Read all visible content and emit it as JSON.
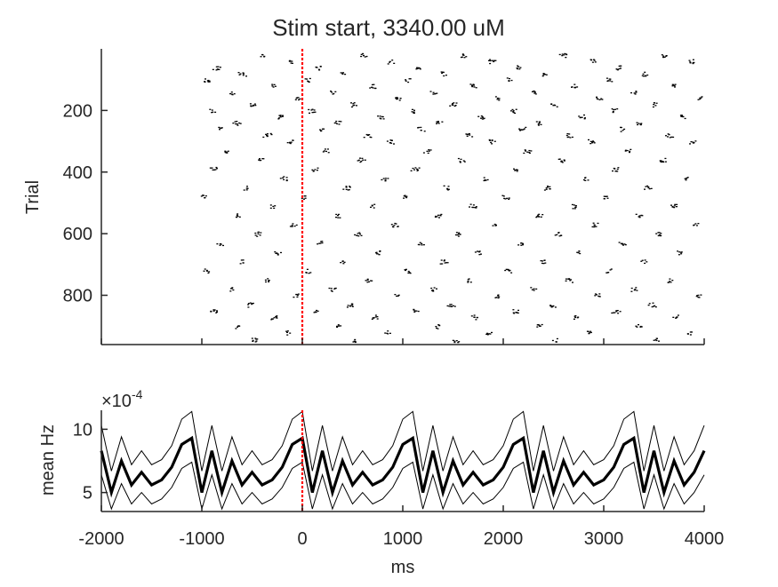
{
  "chart_data": [
    {
      "type": "scatter",
      "subtype": "spike-raster",
      "title": "Stim start, 3340.00 uM",
      "xlabel": "",
      "ylabel": "Trial",
      "xlim": [
        -2000,
        4000
      ],
      "ylim": [
        0,
        960
      ],
      "y_reversed": true,
      "xticks": [
        -2000,
        -1000,
        0,
        1000,
        2000,
        3000,
        4000
      ],
      "yticks": [
        200,
        400,
        600,
        800
      ],
      "ytick_labels": [
        "200",
        "400",
        "600",
        "800"
      ],
      "event_line": {
        "x": 0,
        "color": "#ff0000",
        "style": "dotted"
      },
      "marker_color": "#000000",
      "raster": {
        "n_trials": 960,
        "period_ms": 1000,
        "clusters_phase_trial": [
          [
            -400,
            20
          ],
          [
            -120,
            40
          ],
          [
            -850,
            60
          ],
          [
            -600,
            80
          ],
          [
            -950,
            100
          ],
          [
            -300,
            120
          ],
          [
            -700,
            140
          ],
          [
            -50,
            160
          ],
          [
            -500,
            180
          ],
          [
            -900,
            200
          ],
          [
            -220,
            220
          ],
          [
            -650,
            240
          ],
          [
            -820,
            260
          ],
          [
            -350,
            280
          ],
          [
            -120,
            300
          ],
          [
            -760,
            330
          ],
          [
            -420,
            360
          ],
          [
            -880,
            390
          ],
          [
            -180,
            420
          ],
          [
            -560,
            450
          ],
          [
            -980,
            480
          ],
          [
            -300,
            510
          ],
          [
            -650,
            540
          ],
          [
            -90,
            570
          ],
          [
            -450,
            600
          ],
          [
            -820,
            630
          ],
          [
            -250,
            660
          ],
          [
            -600,
            690
          ],
          [
            -950,
            720
          ],
          [
            -350,
            750
          ],
          [
            -700,
            780
          ],
          [
            -60,
            800
          ],
          [
            -520,
            830
          ],
          [
            -880,
            850
          ],
          [
            -280,
            870
          ],
          [
            -650,
            900
          ],
          [
            -150,
            920
          ],
          [
            -480,
            945
          ]
        ]
      }
    },
    {
      "type": "line",
      "xlabel": "ms",
      "ylabel": "mean Hz",
      "exponent_label": "×10",
      "exponent_value": "-4",
      "xlim": [
        -2000,
        4000
      ],
      "ylim": [
        3.5,
        11.5
      ],
      "xticks": [
        -2000,
        -1000,
        0,
        1000,
        2000,
        3000,
        4000
      ],
      "xtick_labels": [
        "-2000",
        "-1000",
        "0",
        "1000",
        "2000",
        "3000",
        "4000"
      ],
      "yticks": [
        5,
        10
      ],
      "ytick_labels": [
        "5",
        "10"
      ],
      "event_line": {
        "x": 0,
        "color": "#ff0000",
        "style": "dotted"
      },
      "x": [
        -2000,
        -1900,
        -1800,
        -1700,
        -1600,
        -1500,
        -1400,
        -1300,
        -1200,
        -1100,
        -1000,
        -900,
        -800,
        -700,
        -600,
        -500,
        -400,
        -300,
        -200,
        -100,
        0,
        100,
        200,
        300,
        400,
        500,
        600,
        700,
        800,
        900,
        1000,
        1100,
        1200,
        1300,
        1400,
        1500,
        1600,
        1700,
        1800,
        1900,
        2000,
        2100,
        2200,
        2300,
        2400,
        2500,
        2600,
        2700,
        2800,
        2900,
        3000,
        3100,
        3200,
        3300,
        3400,
        3500,
        3600,
        3700,
        3800,
        3900,
        4000
      ],
      "series": [
        {
          "role": "mean",
          "color": "#000000",
          "values": [
            8.3,
            5.0,
            7.5,
            5.6,
            6.6,
            5.6,
            6.0,
            7.0,
            8.8,
            9.3,
            5.0,
            8.3,
            5.0,
            7.5,
            5.6,
            6.6,
            5.6,
            6.0,
            7.0,
            8.8,
            9.3,
            5.0,
            8.3,
            5.0,
            7.5,
            5.6,
            6.6,
            5.6,
            6.0,
            7.0,
            8.8,
            9.3,
            5.0,
            8.3,
            5.0,
            7.5,
            5.6,
            6.6,
            5.6,
            6.0,
            7.0,
            8.8,
            9.3,
            5.0,
            8.3,
            5.0,
            7.5,
            5.6,
            6.6,
            5.6,
            6.0,
            7.0,
            8.8,
            9.3,
            5.0,
            8.3,
            5.0,
            7.5,
            5.6,
            6.6,
            8.3
          ]
        },
        {
          "role": "upper-bound",
          "color": "#000000",
          "values": [
            10.3,
            6.7,
            9.4,
            7.2,
            8.3,
            7.2,
            7.6,
            8.7,
            10.8,
            11.4,
            6.7,
            10.3,
            6.7,
            9.4,
            7.2,
            8.3,
            7.2,
            7.6,
            8.7,
            10.8,
            11.4,
            6.7,
            10.3,
            6.7,
            9.4,
            7.2,
            8.3,
            7.2,
            7.6,
            8.7,
            10.8,
            11.4,
            6.7,
            10.3,
            6.7,
            9.4,
            7.2,
            8.3,
            7.2,
            7.6,
            8.7,
            10.8,
            11.4,
            6.7,
            10.3,
            6.7,
            9.4,
            7.2,
            8.3,
            7.2,
            7.6,
            8.7,
            10.8,
            11.4,
            6.7,
            10.3,
            6.7,
            9.4,
            7.2,
            8.3,
            10.3
          ]
        },
        {
          "role": "lower-bound",
          "color": "#000000",
          "values": [
            6.4,
            3.7,
            5.7,
            4.1,
            5.0,
            4.1,
            4.5,
            5.4,
            6.9,
            7.4,
            3.7,
            6.4,
            3.7,
            5.7,
            4.1,
            5.0,
            4.1,
            4.5,
            5.4,
            6.9,
            7.4,
            3.7,
            6.4,
            3.7,
            5.7,
            4.1,
            5.0,
            4.1,
            4.5,
            5.4,
            6.9,
            7.4,
            3.7,
            6.4,
            3.7,
            5.7,
            4.1,
            5.0,
            4.1,
            4.5,
            5.4,
            6.9,
            7.4,
            3.7,
            6.4,
            3.7,
            5.7,
            4.1,
            5.0,
            4.1,
            4.5,
            5.4,
            6.9,
            7.4,
            3.7,
            6.4,
            3.7,
            5.7,
            4.1,
            5.0,
            6.4
          ]
        }
      ]
    }
  ]
}
